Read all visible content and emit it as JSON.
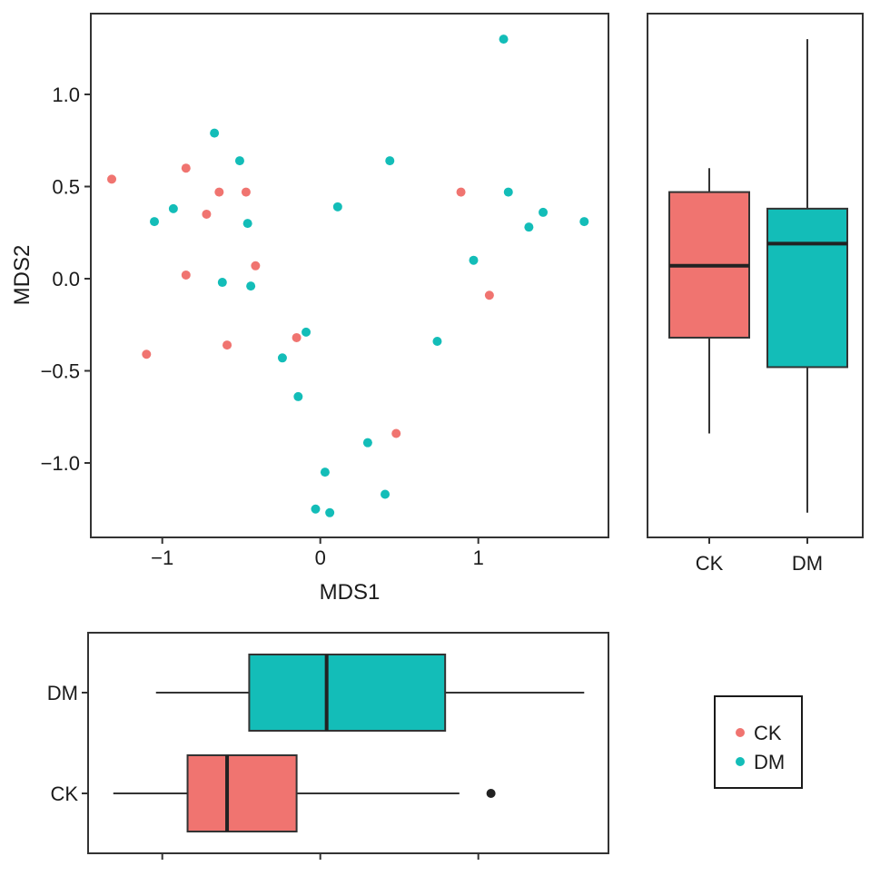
{
  "chart_data": [
    {
      "type": "scatter",
      "xlabel": "MDS1",
      "ylabel": "MDS2",
      "xlim": [
        -1.45,
        1.85
      ],
      "ylim": [
        -1.38,
        1.43
      ],
      "xticks": [
        {
          "value": -1,
          "label": "−1"
        },
        {
          "value": 0,
          "label": "0"
        },
        {
          "value": 1,
          "label": "1"
        }
      ],
      "yticks": [
        {
          "value": 1.0,
          "label": "1.0"
        },
        {
          "value": 0.5,
          "label": "0.5"
        },
        {
          "value": 0.0,
          "label": "0.0"
        },
        {
          "value": -0.5,
          "label": "−0.5"
        },
        {
          "value": -1.0,
          "label": "−1.0"
        }
      ],
      "grid": false,
      "series": [
        {
          "name": "CK",
          "color": "#F07470",
          "points": [
            [
              -1.32,
              0.54
            ],
            [
              -0.85,
              0.6
            ],
            [
              -0.64,
              0.47
            ],
            [
              -0.47,
              0.47
            ],
            [
              -0.72,
              0.35
            ],
            [
              -0.41,
              0.07
            ],
            [
              -0.85,
              0.02
            ],
            [
              -1.1,
              -0.41
            ],
            [
              -0.59,
              -0.36
            ],
            [
              -0.15,
              -0.32
            ],
            [
              0.89,
              0.47
            ],
            [
              1.07,
              -0.09
            ],
            [
              0.48,
              -0.84
            ]
          ]
        },
        {
          "name": "DM",
          "color": "#13BDB8",
          "points": [
            [
              -0.67,
              0.79
            ],
            [
              -0.51,
              0.64
            ],
            [
              -0.93,
              0.38
            ],
            [
              -1.05,
              0.31
            ],
            [
              -0.46,
              0.3
            ],
            [
              -0.62,
              -0.02
            ],
            [
              -0.44,
              -0.04
            ],
            [
              0.44,
              0.64
            ],
            [
              0.11,
              0.39
            ],
            [
              1.16,
              1.3
            ],
            [
              1.19,
              0.47
            ],
            [
              1.41,
              0.36
            ],
            [
              1.32,
              0.28
            ],
            [
              1.67,
              0.31
            ],
            [
              0.97,
              0.1
            ],
            [
              -0.09,
              -0.29
            ],
            [
              -0.24,
              -0.43
            ],
            [
              -0.14,
              -0.64
            ],
            [
              0.74,
              -0.34
            ],
            [
              0.3,
              -0.89
            ],
            [
              0.03,
              -1.05
            ],
            [
              -0.03,
              -1.25
            ],
            [
              0.06,
              -1.27
            ],
            [
              0.41,
              -1.17
            ]
          ]
        }
      ]
    },
    {
      "type": "boxplot",
      "orientation": "vertical",
      "variable": "MDS2",
      "categories": [
        "CK",
        "DM"
      ],
      "boxes": [
        {
          "name": "CK",
          "color": "#F07470",
          "whisker_low": -0.84,
          "q1": -0.32,
          "median": 0.07,
          "q3": 0.47,
          "whisker_high": 0.6,
          "outliers": []
        },
        {
          "name": "DM",
          "color": "#13BDB8",
          "whisker_low": -1.27,
          "q1": -0.48,
          "median": 0.19,
          "q3": 0.38,
          "whisker_high": 1.3,
          "outliers": []
        }
      ]
    },
    {
      "type": "boxplot",
      "orientation": "horizontal",
      "variable": "MDS1",
      "categories": [
        "DM",
        "CK"
      ],
      "boxes": [
        {
          "name": "DM",
          "color": "#13BDB8",
          "whisker_low": -1.04,
          "q1": -0.45,
          "median": 0.04,
          "q3": 0.79,
          "whisker_high": 1.67,
          "outliers": []
        },
        {
          "name": "CK",
          "color": "#F07470",
          "whisker_low": -1.31,
          "q1": -0.84,
          "median": -0.59,
          "q3": -0.15,
          "whisker_high": 0.88,
          "outliers": [
            1.08
          ]
        }
      ]
    }
  ],
  "legend": {
    "placement": "bottom-right",
    "items": [
      {
        "label": "CK",
        "color": "#F07470"
      },
      {
        "label": "DM",
        "color": "#13BDB8"
      }
    ]
  }
}
